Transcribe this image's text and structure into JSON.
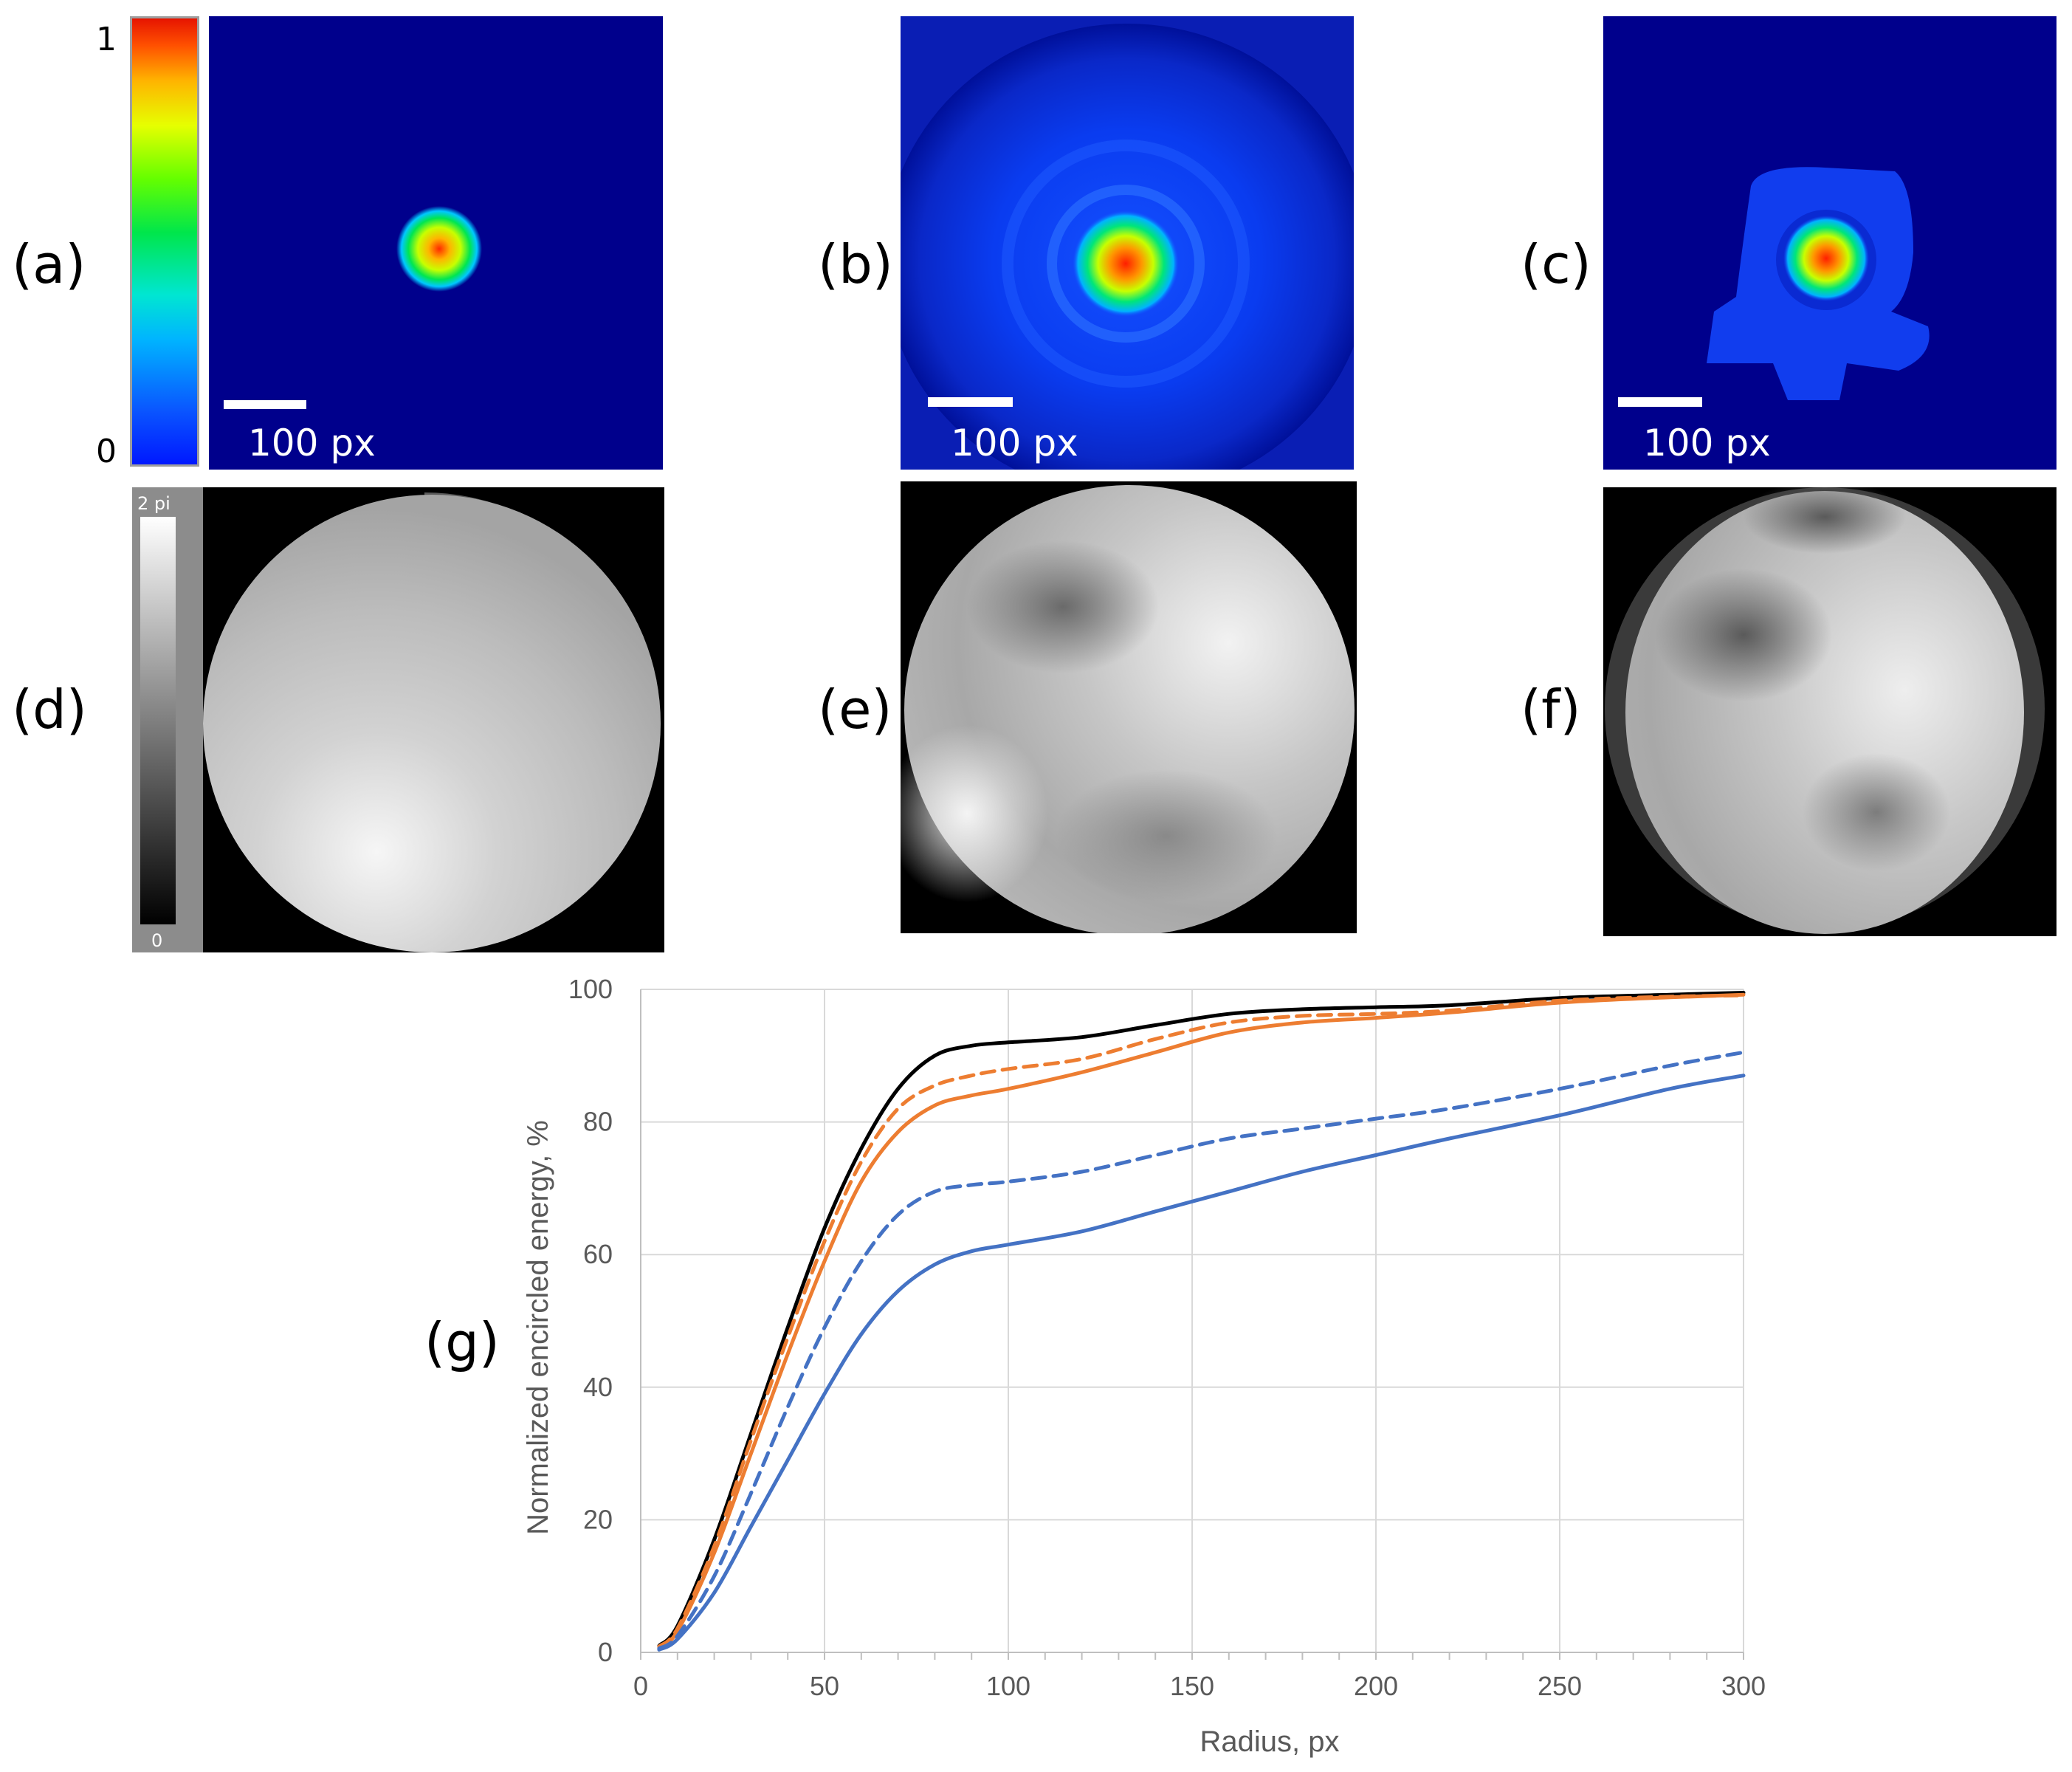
{
  "panels": {
    "a": "(a)",
    "b": "(b)",
    "c": "(c)",
    "d": "(d)",
    "e": "(e)",
    "f": "(f)",
    "g": "(g)"
  },
  "intensity_colorbar": {
    "max_label": "1",
    "min_label": "0"
  },
  "scale_bar": {
    "label": "100 px"
  },
  "phase_colorbar": {
    "max_label": "2 pi",
    "min_label": "0"
  },
  "colors": {
    "heatmap_background": "#00008c",
    "black_series": "#000000",
    "orange_series": "#ed7d31",
    "blue_series": "#4472c4",
    "grid": "#d9d9d9",
    "axis_text": "#595959"
  },
  "chart_data": {
    "type": "line",
    "title": "",
    "xlabel": "Radius, px",
    "ylabel": "Normalized encircled energy, %",
    "xlim": [
      0,
      300
    ],
    "ylim": [
      0,
      100
    ],
    "x_ticks": [
      0,
      50,
      100,
      150,
      200,
      250,
      300
    ],
    "y_ticks": [
      0,
      20,
      40,
      60,
      80,
      100
    ],
    "grid": true,
    "x": [
      5,
      10,
      20,
      30,
      40,
      50,
      60,
      70,
      80,
      90,
      100,
      120,
      140,
      160,
      180,
      200,
      220,
      250,
      280,
      300
    ],
    "series": [
      {
        "name": "black solid",
        "color": "#000000",
        "dash": "solid",
        "values": [
          1,
          4,
          17,
          33,
          49,
          64,
          76,
          85,
          90,
          91.5,
          92,
          92.8,
          94.6,
          96.3,
          97,
          97.3,
          97.6,
          98.7,
          99.2,
          99.5
        ]
      },
      {
        "name": "orange dashed",
        "color": "#ed7d31",
        "dash": "dashed",
        "values": [
          0.9,
          3.6,
          16,
          32,
          47.5,
          62,
          74,
          82,
          85.5,
          87,
          88,
          89.5,
          92.5,
          95,
          96,
          96.3,
          96.8,
          98.3,
          98.9,
          99.1
        ]
      },
      {
        "name": "orange solid",
        "color": "#ed7d31",
        "dash": "solid",
        "values": [
          0.8,
          3.2,
          15,
          30,
          45,
          59,
          71,
          78.5,
          82.5,
          84,
          85,
          87.5,
          90.5,
          93.5,
          95,
          95.7,
          96.5,
          98,
          98.8,
          99.2
        ]
      },
      {
        "name": "blue dashed",
        "color": "#4472c4",
        "dash": "dashed",
        "values": [
          0.6,
          2.5,
          11.5,
          24,
          37,
          49,
          59,
          66,
          69.5,
          70.5,
          71,
          72.5,
          75,
          77.5,
          79,
          80.5,
          82,
          85,
          88.5,
          90.5
        ]
      },
      {
        "name": "blue solid",
        "color": "#4472c4",
        "dash": "solid",
        "values": [
          0.4,
          2,
          9,
          19,
          29,
          39,
          48,
          54.5,
          58.5,
          60.5,
          61.5,
          63.5,
          66.5,
          69.5,
          72.5,
          75,
          77.5,
          81,
          85,
          87
        ]
      }
    ]
  }
}
